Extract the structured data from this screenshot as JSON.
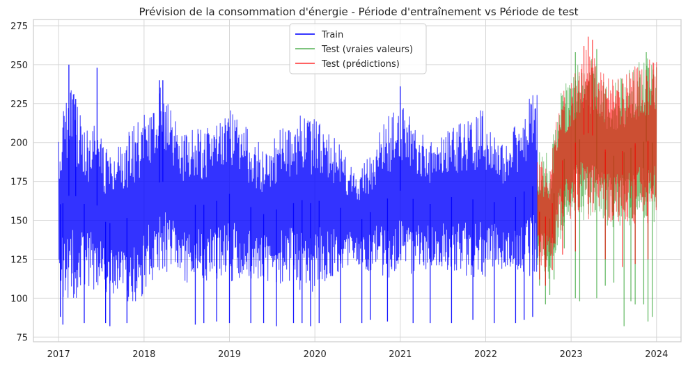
{
  "chart_data": {
    "type": "line",
    "title": "Prévision de la consommation d'énergie - Période d'entraînement vs Période de test",
    "xlabel": "",
    "ylabel": "",
    "x_ticks": [
      "2017",
      "2018",
      "2019",
      "2020",
      "2021",
      "2022",
      "2023",
      "2024"
    ],
    "y_ticks": [
      75,
      100,
      125,
      150,
      175,
      200,
      225,
      250,
      275
    ],
    "xlim": [
      "2016-09-15",
      "2024-04-15"
    ],
    "ylim": [
      72,
      279
    ],
    "grid": true,
    "legend_position": "top-center",
    "series": [
      {
        "name": "Train",
        "color": "#0000ff",
        "x_range": [
          "2017-01-01",
          "2022-08-10"
        ],
        "upper_envelope": [
          [
            2017.0,
            210
          ],
          [
            2017.08,
            228
          ],
          [
            2017.15,
            240
          ],
          [
            2017.25,
            222
          ],
          [
            2017.35,
            210
          ],
          [
            2017.45,
            215
          ],
          [
            2017.55,
            200
          ],
          [
            2017.65,
            195
          ],
          [
            2017.75,
            200
          ],
          [
            2017.85,
            212
          ],
          [
            2017.95,
            220
          ],
          [
            2018.1,
            225
          ],
          [
            2018.2,
            238
          ],
          [
            2018.3,
            222
          ],
          [
            2018.4,
            212
          ],
          [
            2018.5,
            205
          ],
          [
            2018.6,
            212
          ],
          [
            2018.7,
            208
          ],
          [
            2018.8,
            212
          ],
          [
            2018.9,
            220
          ],
          [
            2019.0,
            224
          ],
          [
            2019.1,
            215
          ],
          [
            2019.2,
            210
          ],
          [
            2019.3,
            202
          ],
          [
            2019.4,
            198
          ],
          [
            2019.5,
            200
          ],
          [
            2019.6,
            212
          ],
          [
            2019.75,
            212
          ],
          [
            2019.85,
            222
          ],
          [
            2019.95,
            222
          ],
          [
            2020.05,
            215
          ],
          [
            2020.15,
            208
          ],
          [
            2020.3,
            198
          ],
          [
            2020.4,
            188
          ],
          [
            2020.5,
            182
          ],
          [
            2020.6,
            188
          ],
          [
            2020.7,
            200
          ],
          [
            2020.8,
            212
          ],
          [
            2020.9,
            220
          ],
          [
            2021.0,
            226
          ],
          [
            2021.1,
            218
          ],
          [
            2021.2,
            208
          ],
          [
            2021.3,
            204
          ],
          [
            2021.4,
            200
          ],
          [
            2021.5,
            205
          ],
          [
            2021.6,
            212
          ],
          [
            2021.75,
            215
          ],
          [
            2021.85,
            215
          ],
          [
            2021.95,
            222
          ],
          [
            2022.05,
            210
          ],
          [
            2022.15,
            204
          ],
          [
            2022.25,
            198
          ],
          [
            2022.35,
            212
          ],
          [
            2022.45,
            222
          ],
          [
            2022.55,
            232
          ],
          [
            2022.61,
            236
          ]
        ],
        "lower_envelope": [
          [
            2017.0,
            110
          ],
          [
            2017.08,
            95
          ],
          [
            2017.15,
            98
          ],
          [
            2017.25,
            102
          ],
          [
            2017.35,
            108
          ],
          [
            2017.45,
            104
          ],
          [
            2017.55,
            98
          ],
          [
            2017.65,
            100
          ],
          [
            2017.75,
            98
          ],
          [
            2017.85,
            96
          ],
          [
            2017.95,
            98
          ],
          [
            2018.1,
            110
          ],
          [
            2018.2,
            114
          ],
          [
            2018.3,
            118
          ],
          [
            2018.4,
            112
          ],
          [
            2018.5,
            110
          ],
          [
            2018.6,
            108
          ],
          [
            2018.7,
            112
          ],
          [
            2018.8,
            110
          ],
          [
            2018.9,
            108
          ],
          [
            2019.0,
            110
          ],
          [
            2019.1,
            112
          ],
          [
            2019.2,
            110
          ],
          [
            2019.3,
            112
          ],
          [
            2019.4,
            110
          ],
          [
            2019.5,
            108
          ],
          [
            2019.6,
            108
          ],
          [
            2019.75,
            110
          ],
          [
            2019.85,
            104
          ],
          [
            2019.95,
            100
          ],
          [
            2020.05,
            110
          ],
          [
            2020.15,
            110
          ],
          [
            2020.3,
            118
          ],
          [
            2020.4,
            120
          ],
          [
            2020.5,
            118
          ],
          [
            2020.6,
            115
          ],
          [
            2020.7,
            118
          ],
          [
            2020.8,
            114
          ],
          [
            2020.9,
            110
          ],
          [
            2021.0,
            112
          ],
          [
            2021.1,
            114
          ],
          [
            2021.2,
            115
          ],
          [
            2021.3,
            118
          ],
          [
            2021.4,
            120
          ],
          [
            2021.5,
            118
          ],
          [
            2021.6,
            118
          ],
          [
            2021.75,
            115
          ],
          [
            2021.85,
            112
          ],
          [
            2021.95,
            110
          ],
          [
            2022.05,
            115
          ],
          [
            2022.15,
            118
          ],
          [
            2022.25,
            120
          ],
          [
            2022.35,
            118
          ],
          [
            2022.45,
            115
          ],
          [
            2022.55,
            112
          ],
          [
            2022.61,
            110
          ]
        ],
        "extremes": [
          [
            2017.02,
            88
          ],
          [
            2017.05,
            83
          ],
          [
            2017.12,
            250
          ],
          [
            2017.2,
            228
          ],
          [
            2017.3,
            84
          ],
          [
            2017.45,
            248
          ],
          [
            2017.55,
            84
          ],
          [
            2017.6,
            82
          ],
          [
            2017.8,
            84
          ],
          [
            2018.18,
            240
          ],
          [
            2018.22,
            240
          ],
          [
            2018.6,
            83
          ],
          [
            2018.7,
            84
          ],
          [
            2018.85,
            85
          ],
          [
            2019.0,
            84
          ],
          [
            2019.25,
            84
          ],
          [
            2019.4,
            84
          ],
          [
            2019.55,
            82
          ],
          [
            2019.75,
            84
          ],
          [
            2019.85,
            84
          ],
          [
            2019.95,
            82
          ],
          [
            2020.05,
            84
          ],
          [
            2020.3,
            84
          ],
          [
            2020.55,
            84
          ],
          [
            2020.65,
            86
          ],
          [
            2020.85,
            85
          ],
          [
            2021.0,
            236
          ],
          [
            2021.15,
            84
          ],
          [
            2021.35,
            84
          ],
          [
            2021.6,
            84
          ],
          [
            2021.85,
            86
          ],
          [
            2022.1,
            84
          ],
          [
            2022.35,
            84
          ],
          [
            2022.45,
            86
          ],
          [
            2022.55,
            88
          ]
        ]
      },
      {
        "name": "Test (vraies valeurs)",
        "color": "#2ca02c",
        "x_range": [
          "2022-08-10",
          "2024-01-01"
        ],
        "upper_envelope": [
          [
            2022.61,
            193
          ],
          [
            2022.7,
            196
          ],
          [
            2022.76,
            190
          ],
          [
            2022.8,
            210
          ],
          [
            2022.85,
            228
          ],
          [
            2022.9,
            235
          ],
          [
            2022.95,
            240
          ],
          [
            2023.0,
            245
          ],
          [
            2023.05,
            248
          ],
          [
            2023.1,
            252
          ],
          [
            2023.15,
            250
          ],
          [
            2023.2,
            252
          ],
          [
            2023.25,
            255
          ],
          [
            2023.3,
            250
          ],
          [
            2023.35,
            245
          ],
          [
            2023.4,
            242
          ],
          [
            2023.45,
            240
          ],
          [
            2023.5,
            238
          ],
          [
            2023.55,
            240
          ],
          [
            2023.6,
            242
          ],
          [
            2023.65,
            244
          ],
          [
            2023.7,
            248
          ],
          [
            2023.75,
            250
          ],
          [
            2023.8,
            252
          ],
          [
            2023.85,
            255
          ],
          [
            2023.9,
            256
          ],
          [
            2023.95,
            255
          ],
          [
            2024.0,
            258
          ]
        ],
        "lower_envelope": [
          [
            2022.61,
            120
          ],
          [
            2022.7,
            108
          ],
          [
            2022.76,
            112
          ],
          [
            2022.8,
            125
          ],
          [
            2022.85,
            135
          ],
          [
            2022.9,
            140
          ],
          [
            2022.95,
            145
          ],
          [
            2023.0,
            150
          ],
          [
            2023.05,
            150
          ],
          [
            2023.1,
            152
          ],
          [
            2023.15,
            150
          ],
          [
            2023.2,
            148
          ],
          [
            2023.25,
            150
          ],
          [
            2023.3,
            150
          ],
          [
            2023.35,
            148
          ],
          [
            2023.4,
            146
          ],
          [
            2023.45,
            145
          ],
          [
            2023.5,
            145
          ],
          [
            2023.55,
            146
          ],
          [
            2023.6,
            145
          ],
          [
            2023.65,
            144
          ],
          [
            2023.7,
            145
          ],
          [
            2023.75,
            146
          ],
          [
            2023.8,
            148
          ],
          [
            2023.85,
            146
          ],
          [
            2023.9,
            145
          ],
          [
            2023.95,
            145
          ],
          [
            2024.0,
            152
          ]
        ],
        "extremes": [
          [
            2022.63,
            108
          ],
          [
            2022.7,
            96
          ],
          [
            2022.75,
            102
          ],
          [
            2022.8,
            112
          ],
          [
            2022.92,
            132
          ],
          [
            2023.05,
            100
          ],
          [
            2023.1,
            98
          ],
          [
            2023.3,
            100
          ],
          [
            2023.4,
            108
          ],
          [
            2023.5,
            110
          ],
          [
            2023.62,
            82
          ],
          [
            2023.7,
            98
          ],
          [
            2023.75,
            96
          ],
          [
            2023.85,
            96
          ],
          [
            2023.9,
            85
          ],
          [
            2023.95,
            88
          ],
          [
            2023.05,
            258
          ],
          [
            2023.3,
            260
          ],
          [
            2023.88,
            258
          ]
        ]
      },
      {
        "name": "Test (prédictions)",
        "color": "#ff0000",
        "x_range": [
          "2022-08-10",
          "2024-01-01"
        ],
        "upper_envelope": [
          [
            2022.61,
            188
          ],
          [
            2022.7,
            190
          ],
          [
            2022.76,
            188
          ],
          [
            2022.8,
            208
          ],
          [
            2022.85,
            225
          ],
          [
            2022.9,
            232
          ],
          [
            2022.95,
            238
          ],
          [
            2023.0,
            243
          ],
          [
            2023.05,
            248
          ],
          [
            2023.1,
            254
          ],
          [
            2023.15,
            258
          ],
          [
            2023.2,
            262
          ],
          [
            2023.25,
            258
          ],
          [
            2023.3,
            252
          ],
          [
            2023.35,
            246
          ],
          [
            2023.4,
            243
          ],
          [
            2023.45,
            241
          ],
          [
            2023.5,
            240
          ],
          [
            2023.55,
            241
          ],
          [
            2023.6,
            243
          ],
          [
            2023.65,
            245
          ],
          [
            2023.7,
            249
          ],
          [
            2023.75,
            251
          ],
          [
            2023.8,
            252
          ],
          [
            2023.85,
            254
          ],
          [
            2023.9,
            255
          ],
          [
            2023.95,
            255
          ],
          [
            2024.0,
            256
          ]
        ],
        "lower_envelope": [
          [
            2022.61,
            125
          ],
          [
            2022.7,
            115
          ],
          [
            2022.76,
            118
          ],
          [
            2022.8,
            130
          ],
          [
            2022.85,
            138
          ],
          [
            2022.9,
            145
          ],
          [
            2022.95,
            148
          ],
          [
            2023.0,
            150
          ],
          [
            2023.05,
            152
          ],
          [
            2023.1,
            153
          ],
          [
            2023.15,
            152
          ],
          [
            2023.2,
            150
          ],
          [
            2023.25,
            151
          ],
          [
            2023.3,
            152
          ],
          [
            2023.35,
            150
          ],
          [
            2023.4,
            148
          ],
          [
            2023.45,
            148
          ],
          [
            2023.5,
            147
          ],
          [
            2023.55,
            147
          ],
          [
            2023.6,
            146
          ],
          [
            2023.65,
            146
          ],
          [
            2023.7,
            147
          ],
          [
            2023.75,
            148
          ],
          [
            2023.8,
            149
          ],
          [
            2023.85,
            148
          ],
          [
            2023.9,
            147
          ],
          [
            2023.95,
            147
          ],
          [
            2024.0,
            154
          ]
        ],
        "extremes": [
          [
            2022.63,
            112
          ],
          [
            2022.7,
            108
          ],
          [
            2022.78,
            118
          ],
          [
            2022.9,
            128
          ],
          [
            2023.05,
            130
          ],
          [
            2023.2,
            268
          ],
          [
            2023.25,
            266
          ],
          [
            2023.15,
            262
          ],
          [
            2023.4,
            125
          ],
          [
            2023.6,
            120
          ],
          [
            2023.75,
            122
          ],
          [
            2023.9,
            125
          ]
        ]
      }
    ]
  }
}
